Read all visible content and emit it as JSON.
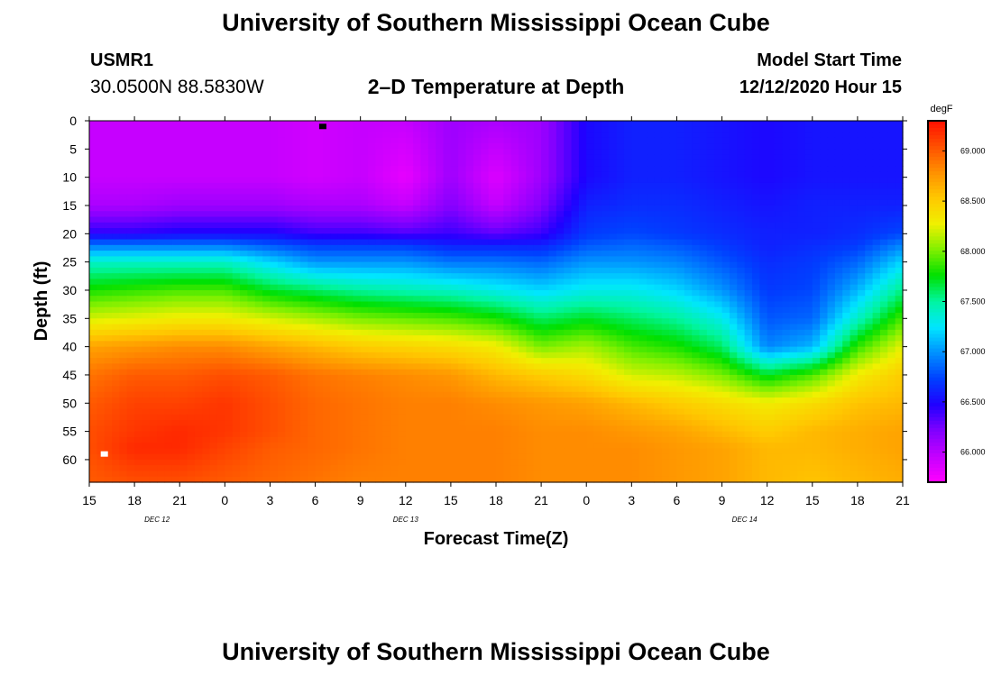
{
  "header": {
    "title": "University of Southern Mississippi Ocean Cube",
    "station_id": "USMR1",
    "station_coords": "30.0500N 88.5830W",
    "plot_title": "2–D Temperature at Depth",
    "start_label": "Model Start Time",
    "start_value": "12/12/2020 Hour 15"
  },
  "footer": {
    "title": "University of Southern Mississippi Ocean Cube"
  },
  "chart_data": {
    "type": "heatmap",
    "title": "2–D Temperature at Depth",
    "xlabel": "Forecast Time(Z)",
    "ylabel": "Depth (ft)",
    "x_tick_labels": [
      "15",
      "18",
      "21",
      "0",
      "3",
      "6",
      "9",
      "12",
      "15",
      "18",
      "21",
      "0",
      "3",
      "6",
      "9",
      "12",
      "15",
      "18",
      "21"
    ],
    "x_hours": [
      0,
      3,
      6,
      9,
      12,
      15,
      18,
      21,
      24,
      27,
      30,
      33,
      36,
      39,
      42,
      45,
      48,
      51,
      54
    ],
    "date_labels": [
      {
        "hour": 4.5,
        "text": "DEC 12"
      },
      {
        "hour": 21,
        "text": "DEC 13"
      },
      {
        "hour": 43.5,
        "text": "DEC 14"
      }
    ],
    "y_ticks": [
      0,
      5,
      10,
      15,
      20,
      25,
      30,
      35,
      40,
      45,
      50,
      55,
      60
    ],
    "xlim": [
      0,
      54
    ],
    "ylim": [
      0,
      64
    ],
    "colorbar": {
      "unit": "degF",
      "range": [
        65.7,
        69.3
      ],
      "tick_values": [
        66.0,
        66.5,
        67.0,
        67.5,
        68.0,
        68.5,
        69.0
      ],
      "tick_labels": [
        "66.000",
        "66.500",
        "67.000",
        "67.500",
        "68.000",
        "68.500",
        "69.000"
      ],
      "colors": [
        "#ff00ff",
        "#c400ff",
        "#8000ff",
        "#2000ff",
        "#0040ff",
        "#0090ff",
        "#00e6ff",
        "#00f5a0",
        "#00e000",
        "#80f000",
        "#f0f000",
        "#ffc800",
        "#ff9000",
        "#ff5000",
        "#ff1000"
      ]
    },
    "markers": [
      {
        "hour": 15.5,
        "depth": 1,
        "color": "#000000"
      },
      {
        "hour": 1,
        "depth": 59,
        "color": "#ffffff"
      }
    ],
    "profiles_note": "temperature by forecast hour at depths 0,10,15,20,22,25,30,35,40,45,50,55,58,64 ft",
    "profile_depths": [
      0,
      10,
      15,
      20,
      22,
      25,
      30,
      35,
      40,
      45,
      50,
      55,
      58,
      64
    ],
    "profiles": [
      {
        "hour": 0,
        "temps": [
          65.95,
          65.95,
          66.05,
          66.45,
          66.9,
          67.4,
          67.8,
          68.2,
          68.7,
          68.9,
          69.0,
          69.05,
          69.05,
          69.0
        ]
      },
      {
        "hour": 3,
        "temps": [
          65.95,
          65.95,
          66.05,
          66.45,
          66.9,
          67.4,
          67.85,
          68.25,
          68.75,
          69.0,
          69.1,
          69.15,
          69.2,
          69.05
        ]
      },
      {
        "hour": 6,
        "temps": [
          65.95,
          65.95,
          66.1,
          66.5,
          66.9,
          67.4,
          67.9,
          68.3,
          68.8,
          69.0,
          69.1,
          69.2,
          69.2,
          69.05
        ]
      },
      {
        "hour": 9,
        "temps": [
          65.95,
          65.95,
          66.1,
          66.5,
          66.9,
          67.4,
          67.9,
          68.3,
          68.8,
          69.05,
          69.15,
          69.15,
          69.1,
          69.0
        ]
      },
      {
        "hour": 12,
        "temps": [
          65.95,
          65.95,
          66.1,
          66.5,
          66.8,
          67.2,
          67.7,
          68.2,
          68.7,
          69.0,
          69.05,
          69.05,
          69.0,
          68.95
        ]
      },
      {
        "hour": 15,
        "temps": [
          65.9,
          65.9,
          66.05,
          66.4,
          66.7,
          67.0,
          67.6,
          68.1,
          68.6,
          68.9,
          68.95,
          68.95,
          68.95,
          68.9
        ]
      },
      {
        "hour": 18,
        "temps": [
          65.95,
          65.95,
          66.05,
          66.4,
          66.7,
          67.0,
          67.5,
          68.0,
          68.5,
          68.85,
          68.9,
          68.9,
          68.9,
          68.85
        ]
      },
      {
        "hour": 21,
        "temps": [
          65.95,
          65.8,
          65.95,
          66.35,
          66.7,
          67.0,
          67.45,
          67.95,
          68.45,
          68.8,
          68.85,
          68.85,
          68.85,
          68.85
        ]
      },
      {
        "hour": 24,
        "temps": [
          66.1,
          66.1,
          66.2,
          66.4,
          66.6,
          66.9,
          67.4,
          67.9,
          68.4,
          68.75,
          68.85,
          68.85,
          68.85,
          68.85
        ]
      },
      {
        "hour": 27,
        "temps": [
          66.05,
          65.85,
          65.95,
          66.3,
          66.6,
          66.9,
          67.3,
          67.8,
          68.3,
          68.6,
          68.8,
          68.85,
          68.85,
          68.85
        ]
      },
      {
        "hour": 30,
        "temps": [
          66.1,
          66.1,
          66.2,
          66.4,
          66.6,
          66.85,
          67.2,
          67.6,
          68.0,
          68.5,
          68.75,
          68.8,
          68.8,
          68.8
        ]
      },
      {
        "hour": 33,
        "temps": [
          66.5,
          66.5,
          66.6,
          66.7,
          66.8,
          67.0,
          67.3,
          67.7,
          68.1,
          68.4,
          68.7,
          68.8,
          68.8,
          68.8
        ]
      },
      {
        "hour": 36,
        "temps": [
          66.6,
          66.6,
          66.65,
          66.75,
          66.85,
          67.0,
          67.3,
          67.6,
          67.9,
          68.2,
          68.6,
          68.75,
          68.8,
          68.8
        ]
      },
      {
        "hour": 39,
        "temps": [
          66.6,
          66.6,
          66.65,
          66.7,
          66.8,
          66.95,
          67.2,
          67.5,
          67.8,
          68.15,
          68.5,
          68.7,
          68.75,
          68.75
        ]
      },
      {
        "hour": 42,
        "temps": [
          66.55,
          66.55,
          66.6,
          66.65,
          66.7,
          66.8,
          67.0,
          67.3,
          67.6,
          68.0,
          68.4,
          68.6,
          68.7,
          68.7
        ]
      },
      {
        "hour": 45,
        "temps": [
          66.5,
          66.5,
          66.55,
          66.6,
          66.6,
          66.65,
          66.7,
          66.8,
          66.95,
          67.7,
          68.3,
          68.5,
          68.6,
          68.6
        ]
      },
      {
        "hour": 48,
        "temps": [
          66.55,
          66.55,
          66.6,
          66.6,
          66.65,
          66.7,
          66.75,
          66.85,
          67.1,
          67.9,
          68.4,
          68.6,
          68.6,
          68.55
        ]
      },
      {
        "hour": 51,
        "temps": [
          66.55,
          66.55,
          66.6,
          66.65,
          66.7,
          66.85,
          67.1,
          67.4,
          67.85,
          68.3,
          68.55,
          68.65,
          68.65,
          68.6
        ]
      },
      {
        "hour": 54,
        "temps": [
          66.55,
          66.55,
          66.6,
          66.75,
          66.95,
          67.2,
          67.55,
          67.9,
          68.25,
          68.5,
          68.6,
          68.7,
          68.7,
          68.65
        ]
      }
    ]
  }
}
